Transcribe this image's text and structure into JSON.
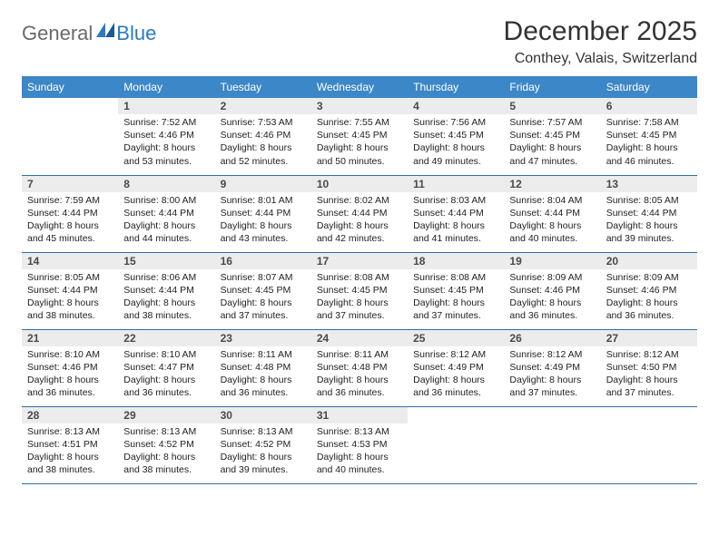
{
  "logo": {
    "general": "General",
    "blue": "Blue"
  },
  "title": "December 2025",
  "location": "Conthey, Valais, Switzerland",
  "colors": {
    "header_bg": "#3c87c7",
    "header_text": "#ffffff",
    "daynum_bg": "#ececec",
    "daynum_text": "#4a4a4a",
    "body_text": "#222222",
    "rule": "#2f6fa6",
    "logo_gray": "#6a6a6a",
    "logo_blue": "#2a7ac0"
  },
  "headers": [
    "Sunday",
    "Monday",
    "Tuesday",
    "Wednesday",
    "Thursday",
    "Friday",
    "Saturday"
  ],
  "weeks": [
    [
      null,
      {
        "n": "1",
        "sr": "7:52 AM",
        "ss": "4:46 PM",
        "dl": "8 hours and 53 minutes."
      },
      {
        "n": "2",
        "sr": "7:53 AM",
        "ss": "4:46 PM",
        "dl": "8 hours and 52 minutes."
      },
      {
        "n": "3",
        "sr": "7:55 AM",
        "ss": "4:45 PM",
        "dl": "8 hours and 50 minutes."
      },
      {
        "n": "4",
        "sr": "7:56 AM",
        "ss": "4:45 PM",
        "dl": "8 hours and 49 minutes."
      },
      {
        "n": "5",
        "sr": "7:57 AM",
        "ss": "4:45 PM",
        "dl": "8 hours and 47 minutes."
      },
      {
        "n": "6",
        "sr": "7:58 AM",
        "ss": "4:45 PM",
        "dl": "8 hours and 46 minutes."
      }
    ],
    [
      {
        "n": "7",
        "sr": "7:59 AM",
        "ss": "4:44 PM",
        "dl": "8 hours and 45 minutes."
      },
      {
        "n": "8",
        "sr": "8:00 AM",
        "ss": "4:44 PM",
        "dl": "8 hours and 44 minutes."
      },
      {
        "n": "9",
        "sr": "8:01 AM",
        "ss": "4:44 PM",
        "dl": "8 hours and 43 minutes."
      },
      {
        "n": "10",
        "sr": "8:02 AM",
        "ss": "4:44 PM",
        "dl": "8 hours and 42 minutes."
      },
      {
        "n": "11",
        "sr": "8:03 AM",
        "ss": "4:44 PM",
        "dl": "8 hours and 41 minutes."
      },
      {
        "n": "12",
        "sr": "8:04 AM",
        "ss": "4:44 PM",
        "dl": "8 hours and 40 minutes."
      },
      {
        "n": "13",
        "sr": "8:05 AM",
        "ss": "4:44 PM",
        "dl": "8 hours and 39 minutes."
      }
    ],
    [
      {
        "n": "14",
        "sr": "8:05 AM",
        "ss": "4:44 PM",
        "dl": "8 hours and 38 minutes."
      },
      {
        "n": "15",
        "sr": "8:06 AM",
        "ss": "4:44 PM",
        "dl": "8 hours and 38 minutes."
      },
      {
        "n": "16",
        "sr": "8:07 AM",
        "ss": "4:45 PM",
        "dl": "8 hours and 37 minutes."
      },
      {
        "n": "17",
        "sr": "8:08 AM",
        "ss": "4:45 PM",
        "dl": "8 hours and 37 minutes."
      },
      {
        "n": "18",
        "sr": "8:08 AM",
        "ss": "4:45 PM",
        "dl": "8 hours and 37 minutes."
      },
      {
        "n": "19",
        "sr": "8:09 AM",
        "ss": "4:46 PM",
        "dl": "8 hours and 36 minutes."
      },
      {
        "n": "20",
        "sr": "8:09 AM",
        "ss": "4:46 PM",
        "dl": "8 hours and 36 minutes."
      }
    ],
    [
      {
        "n": "21",
        "sr": "8:10 AM",
        "ss": "4:46 PM",
        "dl": "8 hours and 36 minutes."
      },
      {
        "n": "22",
        "sr": "8:10 AM",
        "ss": "4:47 PM",
        "dl": "8 hours and 36 minutes."
      },
      {
        "n": "23",
        "sr": "8:11 AM",
        "ss": "4:48 PM",
        "dl": "8 hours and 36 minutes."
      },
      {
        "n": "24",
        "sr": "8:11 AM",
        "ss": "4:48 PM",
        "dl": "8 hours and 36 minutes."
      },
      {
        "n": "25",
        "sr": "8:12 AM",
        "ss": "4:49 PM",
        "dl": "8 hours and 36 minutes."
      },
      {
        "n": "26",
        "sr": "8:12 AM",
        "ss": "4:49 PM",
        "dl": "8 hours and 37 minutes."
      },
      {
        "n": "27",
        "sr": "8:12 AM",
        "ss": "4:50 PM",
        "dl": "8 hours and 37 minutes."
      }
    ],
    [
      {
        "n": "28",
        "sr": "8:13 AM",
        "ss": "4:51 PM",
        "dl": "8 hours and 38 minutes."
      },
      {
        "n": "29",
        "sr": "8:13 AM",
        "ss": "4:52 PM",
        "dl": "8 hours and 38 minutes."
      },
      {
        "n": "30",
        "sr": "8:13 AM",
        "ss": "4:52 PM",
        "dl": "8 hours and 39 minutes."
      },
      {
        "n": "31",
        "sr": "8:13 AM",
        "ss": "4:53 PM",
        "dl": "8 hours and 40 minutes."
      },
      null,
      null,
      null
    ]
  ],
  "labels": {
    "sunrise": "Sunrise: ",
    "sunset": "Sunset: ",
    "daylight": "Daylight: "
  }
}
